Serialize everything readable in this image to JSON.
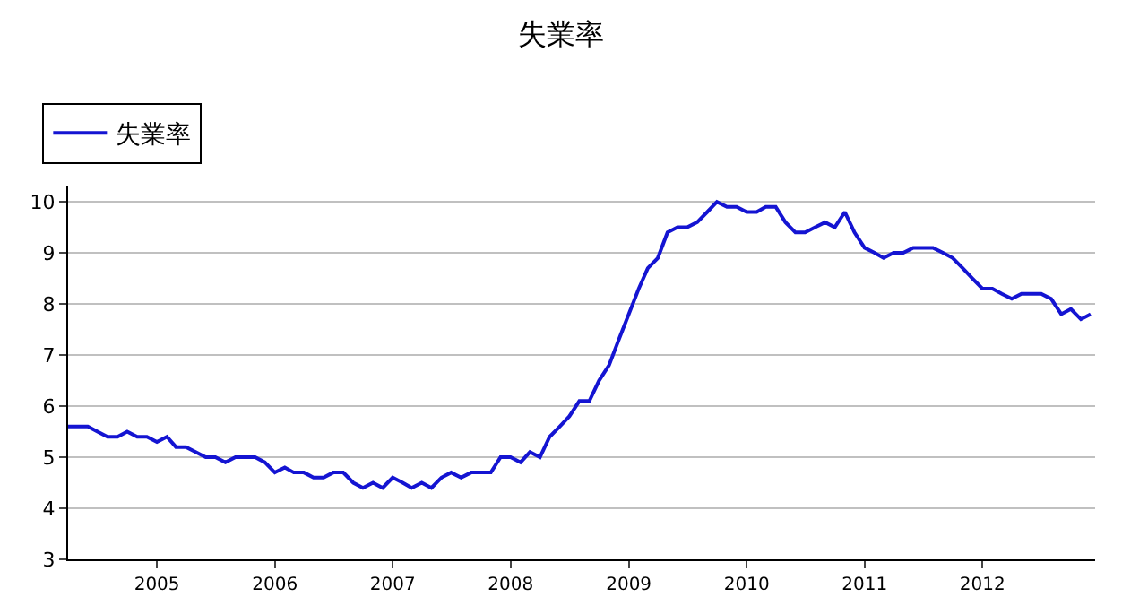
{
  "chart_data": {
    "type": "line",
    "title": "失業率",
    "x": [
      "2004-04",
      "2004-05",
      "2004-06",
      "2004-07",
      "2004-08",
      "2004-09",
      "2004-10",
      "2004-11",
      "2004-12",
      "2005-01",
      "2005-02",
      "2005-03",
      "2005-04",
      "2005-05",
      "2005-06",
      "2005-07",
      "2005-08",
      "2005-09",
      "2005-10",
      "2005-11",
      "2005-12",
      "2006-01",
      "2006-02",
      "2006-03",
      "2006-04",
      "2006-05",
      "2006-06",
      "2006-07",
      "2006-08",
      "2006-09",
      "2006-10",
      "2006-11",
      "2006-12",
      "2007-01",
      "2007-02",
      "2007-03",
      "2007-04",
      "2007-05",
      "2007-06",
      "2007-07",
      "2007-08",
      "2007-09",
      "2007-10",
      "2007-11",
      "2007-12",
      "2008-01",
      "2008-02",
      "2008-03",
      "2008-04",
      "2008-05",
      "2008-06",
      "2008-07",
      "2008-08",
      "2008-09",
      "2008-10",
      "2008-11",
      "2008-12",
      "2009-01",
      "2009-02",
      "2009-03",
      "2009-04",
      "2009-05",
      "2009-06",
      "2009-07",
      "2009-08",
      "2009-09",
      "2009-10",
      "2009-11",
      "2009-12",
      "2010-01",
      "2010-02",
      "2010-03",
      "2010-04",
      "2010-05",
      "2010-06",
      "2010-07",
      "2010-08",
      "2010-09",
      "2010-10",
      "2010-11",
      "2010-12",
      "2011-01",
      "2011-02",
      "2011-03",
      "2011-04",
      "2011-05",
      "2011-06",
      "2011-07",
      "2011-08",
      "2011-09",
      "2011-10",
      "2011-11",
      "2011-12",
      "2012-01",
      "2012-02",
      "2012-03",
      "2012-04",
      "2012-05",
      "2012-06",
      "2012-07",
      "2012-08",
      "2012-09",
      "2012-10",
      "2012-11",
      "2012-12"
    ],
    "series": [
      {
        "name": "失業率",
        "color": "#1414d2",
        "values": [
          5.6,
          5.6,
          5.6,
          5.5,
          5.4,
          5.4,
          5.5,
          5.4,
          5.4,
          5.3,
          5.4,
          5.2,
          5.2,
          5.1,
          5.0,
          5.0,
          4.9,
          5.0,
          5.0,
          5.0,
          4.9,
          4.7,
          4.8,
          4.7,
          4.7,
          4.6,
          4.6,
          4.7,
          4.7,
          4.5,
          4.4,
          4.5,
          4.4,
          4.6,
          4.5,
          4.4,
          4.5,
          4.4,
          4.6,
          4.7,
          4.6,
          4.7,
          4.7,
          4.7,
          5.0,
          5.0,
          4.9,
          5.1,
          5.0,
          5.4,
          5.6,
          5.8,
          6.1,
          6.1,
          6.5,
          6.8,
          7.3,
          7.8,
          8.3,
          8.7,
          8.9,
          9.4,
          9.5,
          9.5,
          9.6,
          9.8,
          10.0,
          9.9,
          9.9,
          9.8,
          9.8,
          9.9,
          9.9,
          9.6,
          9.4,
          9.4,
          9.5,
          9.6,
          9.5,
          9.8,
          9.4,
          9.1,
          9.0,
          8.9,
          9.0,
          9.0,
          9.1,
          9.1,
          9.1,
          9.0,
          8.9,
          8.7,
          8.5,
          8.3,
          8.3,
          8.2,
          8.1,
          8.2,
          8.2,
          8.2,
          8.1,
          7.8,
          7.9,
          7.7,
          7.8
        ]
      }
    ],
    "xlim": [
      "2004-04-01",
      "2012-12-15"
    ],
    "xticks": [
      {
        "value": "2005-01-01",
        "label": "2005"
      },
      {
        "value": "2006-01-01",
        "label": "2006"
      },
      {
        "value": "2007-01-01",
        "label": "2007"
      },
      {
        "value": "2008-01-01",
        "label": "2008"
      },
      {
        "value": "2009-01-01",
        "label": "2009"
      },
      {
        "value": "2010-01-01",
        "label": "2010"
      },
      {
        "value": "2011-01-01",
        "label": "2011"
      },
      {
        "value": "2012-01-01",
        "label": "2012"
      }
    ],
    "ylim": [
      3,
      10.3
    ],
    "yticks": [
      3,
      4,
      5,
      6,
      7,
      8,
      9,
      10
    ],
    "grid": "y",
    "legend": "top left",
    "marker": "none",
    "line_style": "solid"
  }
}
